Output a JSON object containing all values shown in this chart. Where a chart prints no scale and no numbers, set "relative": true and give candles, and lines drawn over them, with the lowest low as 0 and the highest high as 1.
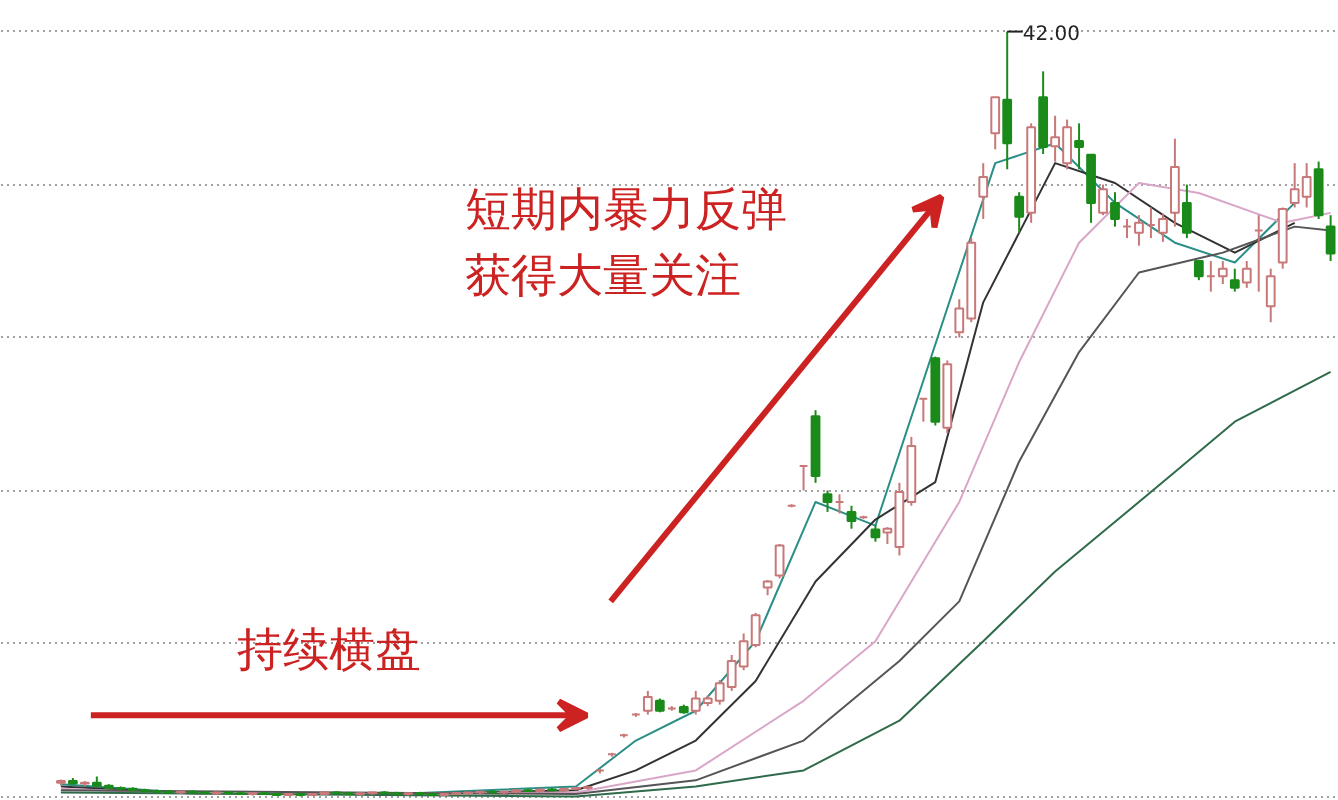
{
  "chart_data": {
    "type": "candlestick",
    "relative": true,
    "grid": "y",
    "categories": [
      null,
      null,
      null,
      null,
      null,
      null,
      null,
      null,
      null,
      null,
      null,
      null,
      null,
      null,
      null,
      null,
      null,
      null,
      null,
      null,
      null,
      null,
      null,
      null,
      null,
      null,
      null,
      null,
      null,
      null,
      null,
      null,
      null,
      null,
      null,
      null,
      null,
      null,
      null,
      null,
      null,
      null,
      null,
      null,
      null,
      null,
      null,
      null,
      null,
      null,
      null,
      null,
      null,
      null,
      null,
      null,
      null,
      null,
      null,
      null,
      null,
      null,
      null,
      null,
      null,
      null,
      null,
      null,
      null,
      null,
      null,
      null,
      null,
      null,
      null,
      null,
      null,
      null,
      null,
      null,
      null,
      null,
      null,
      null,
      null,
      null,
      null,
      null,
      null,
      null,
      null,
      null,
      null,
      null,
      null,
      null,
      null,
      null,
      null,
      null,
      null,
      null,
      null,
      null,
      null,
      null,
      null
    ],
    "colors": [
      "#c87878",
      "#1a8a1a",
      "#c87878",
      "#1a8a1a",
      "#1a8a1a",
      "#1a8a1a",
      "#1a8a1a",
      "#1a8a1a",
      "#1a8a1a",
      "#1a8a1a",
      "#c87878",
      "#1a8a1a",
      "#1a8a1a",
      "#c87878",
      "#1a8a1a",
      "#1a8a1a",
      "#c87878",
      "#1a8a1a",
      "#1a8a1a",
      "#c87878",
      "#1a8a1a",
      "#c87878",
      "#c87878",
      "#1a8a1a",
      "#1a8a1a",
      "#c87878",
      "#c87878",
      "#1a8a1a",
      "#1a8a1a",
      "#c87878",
      "#1a8a1a",
      "#1a8a1a",
      "#c87878",
      "#c87878",
      "#c87878",
      "#c87878",
      "#1a8a1a",
      "#c87878",
      "#c87878",
      "#1a8a1a",
      "#c87878",
      "#1a8a1a",
      "#c87878",
      "#c87878",
      "#c87878",
      "#c87878",
      "#c87878",
      "#c87878",
      "#c87878",
      "#c87878",
      "#1a8a1a",
      "#c87878",
      "#1a8a1a",
      "#c87878",
      "#c87878",
      "#c87878",
      "#c87878",
      "#c87878",
      "#c87878",
      "#c87878",
      "#c87878",
      "#c87878",
      "#c87878",
      "#1a8a1a",
      "#1a8a1a",
      "#c87878",
      "#1a8a1a",
      "#c87878",
      "#1a8a1a",
      "#c87878",
      "#c87878",
      "#c87878",
      "#c87878",
      "#1a8a1a",
      "#c87878",
      "#c87878",
      "#c87878",
      "#c87878",
      "#c87878",
      "#1a8a1a",
      "#1a8a1a",
      "#c87878",
      "#1a8a1a",
      "#c87878",
      "#c87878",
      "#1a8a1a",
      "#1a8a1a",
      "#c87878",
      "#1a8a1a",
      "#c87878",
      "#c87878",
      "#c87878",
      "#c87878",
      "#c87878",
      "#1a8a1a",
      "#1a8a1a",
      "#c87878",
      "#c87878",
      "#1a8a1a",
      "#c87878",
      "#c87878",
      "#c87878",
      "#c87878",
      "#c87878",
      "#c87878",
      "#1a8a1a",
      "#1a8a1a"
    ],
    "ohlc": [
      [
        0.018,
        0.022,
        0.014,
        0.02
      ],
      [
        0.02,
        0.024,
        0.016,
        0.017
      ],
      [
        0.017,
        0.02,
        0.013,
        0.018
      ],
      [
        0.018,
        0.026,
        0.012,
        0.014
      ],
      [
        0.014,
        0.016,
        0.01,
        0.011
      ],
      [
        0.011,
        0.013,
        0.008,
        0.01
      ],
      [
        0.01,
        0.012,
        0.007,
        0.008
      ],
      [
        0.008,
        0.01,
        0.005,
        0.007
      ],
      [
        0.007,
        0.009,
        0.004,
        0.006
      ],
      [
        0.006,
        0.008,
        0.003,
        0.005
      ],
      [
        0.005,
        0.007,
        0.003,
        0.006
      ],
      [
        0.006,
        0.008,
        0.004,
        0.005
      ],
      [
        0.005,
        0.007,
        0.003,
        0.004
      ],
      [
        0.004,
        0.006,
        0.002,
        0.005
      ],
      [
        0.005,
        0.007,
        0.003,
        0.004
      ],
      [
        0.004,
        0.006,
        0.002,
        0.003
      ],
      [
        0.003,
        0.005,
        0.001,
        0.004
      ],
      [
        0.004,
        0.006,
        0.002,
        0.003
      ],
      [
        0.003,
        0.005,
        0.001,
        0.002
      ],
      [
        0.002,
        0.004,
        0.001,
        0.003
      ],
      [
        0.003,
        0.004,
        0,
        0.002
      ],
      [
        0.002,
        0.004,
        0.001,
        0.003
      ],
      [
        0.003,
        0.006,
        0.002,
        0.005
      ],
      [
        0.005,
        0.007,
        0.003,
        0.004
      ],
      [
        0.004,
        0.006,
        0.002,
        0.003
      ],
      [
        0.003,
        0.005,
        0.001,
        0.004
      ],
      [
        0.004,
        0.006,
        0.002,
        0.005
      ],
      [
        0.005,
        0.007,
        0.003,
        0.004
      ],
      [
        0.004,
        0.006,
        0.002,
        0.003
      ],
      [
        0.003,
        0.005,
        0.001,
        0.004
      ],
      [
        0.004,
        0.006,
        0.002,
        0.003
      ],
      [
        0.003,
        0.005,
        0.001,
        0.002
      ],
      [
        0.002,
        0.004,
        0.001,
        0.003
      ],
      [
        0.003,
        0.005,
        0.002,
        0.004
      ],
      [
        0.004,
        0.006,
        0.002,
        0.005
      ],
      [
        0.005,
        0.007,
        0.003,
        0.006
      ],
      [
        0.006,
        0.008,
        0.004,
        0.005
      ],
      [
        0.005,
        0.007,
        0.003,
        0.006
      ],
      [
        0.006,
        0.009,
        0.004,
        0.008
      ],
      [
        0.008,
        0.01,
        0.006,
        0.007
      ],
      [
        0.007,
        0.01,
        0.005,
        0.009
      ],
      [
        0.009,
        0.011,
        0.007,
        0.008
      ],
      [
        0.008,
        0.011,
        0.006,
        0.01
      ],
      [
        0.01,
        0.012,
        0.008,
        0.011
      ],
      [
        0.011,
        0.013,
        0.009,
        0.012
      ],
      [
        0.034,
        0.036,
        0.03,
        0.034
      ],
      [
        0.055,
        0.057,
        0.052,
        0.055
      ],
      [
        0.08,
        0.082,
        0.077,
        0.08
      ],
      [
        0.107,
        0.109,
        0.104,
        0.107
      ],
      [
        0.112,
        0.138,
        0.107,
        0.13
      ],
      [
        0.125,
        0.128,
        0.11,
        0.112
      ],
      [
        0.115,
        0.118,
        0.112,
        0.115
      ],
      [
        0.117,
        0.12,
        0.108,
        0.11
      ],
      [
        0.112,
        0.138,
        0.107,
        0.128
      ],
      [
        0.122,
        0.132,
        0.118,
        0.128
      ],
      [
        0.125,
        0.152,
        0.12,
        0.148
      ],
      [
        0.143,
        0.185,
        0.138,
        0.177
      ],
      [
        0.17,
        0.213,
        0.165,
        0.203
      ],
      [
        0.198,
        0.24,
        0.195,
        0.237
      ],
      [
        0.273,
        0.283,
        0.263,
        0.281
      ],
      [
        0.289,
        0.33,
        0.285,
        0.328
      ],
      [
        0.38,
        0.382,
        0.378,
        0.38
      ],
      [
        0.432,
        0.432,
        0.4,
        0.432
      ],
      [
        0.497,
        0.505,
        0.41,
        0.419
      ],
      [
        0.395,
        0.4,
        0.372,
        0.385
      ],
      [
        0.385,
        0.395,
        0.37,
        0.385
      ],
      [
        0.372,
        0.38,
        0.35,
        0.36
      ],
      [
        0.365,
        0.367,
        0.363,
        0.365
      ],
      [
        0.349,
        0.355,
        0.333,
        0.339
      ],
      [
        0.345,
        0.352,
        0.33,
        0.35
      ],
      [
        0.326,
        0.41,
        0.315,
        0.398
      ],
      [
        0.385,
        0.47,
        0.38,
        0.458
      ],
      [
        0.52,
        0.52,
        0.49,
        0.52
      ],
      [
        0.573,
        0.575,
        0.485,
        0.49
      ],
      [
        0.482,
        0.57,
        0.475,
        0.565
      ],
      [
        0.607,
        0.65,
        0.6,
        0.638
      ],
      [
        0.625,
        0.73,
        0.62,
        0.724
      ],
      [
        0.784,
        0.828,
        0.755,
        0.81
      ],
      [
        0.867,
        0.914,
        0.846,
        0.914
      ],
      [
        0.911,
        1,
        0.82,
        0.854
      ],
      [
        0.784,
        0.79,
        0.737,
        0.758
      ],
      [
        0.763,
        0.88,
        0.75,
        0.875
      ],
      [
        0.914,
        0.948,
        0.84,
        0.849
      ],
      [
        0.85,
        0.89,
        0.83,
        0.862
      ],
      [
        0.828,
        0.885,
        0.82,
        0.875
      ],
      [
        0.857,
        0.88,
        0.82,
        0.849
      ],
      [
        0.839,
        0.84,
        0.75,
        0.776
      ],
      [
        0.763,
        0.8,
        0.76,
        0.794
      ],
      [
        0.776,
        0.79,
        0.745,
        0.755
      ],
      [
        0.745,
        0.755,
        0.73,
        0.745
      ],
      [
        0.737,
        0.76,
        0.72,
        0.75
      ],
      [
        0.747,
        0.77,
        0.73,
        0.747
      ],
      [
        0.737,
        0.762,
        0.725,
        0.755
      ],
      [
        0.763,
        0.86,
        0.745,
        0.823
      ],
      [
        0.776,
        0.8,
        0.73,
        0.737
      ],
      [
        0.7,
        0.7,
        0.675,
        0.68
      ],
      [
        0.68,
        0.7,
        0.66,
        0.68
      ],
      [
        0.68,
        0.7,
        0.67,
        0.69
      ],
      [
        0.675,
        0.69,
        0.66,
        0.665
      ],
      [
        0.672,
        0.7,
        0.665,
        0.69
      ],
      [
        0.74,
        0.76,
        0.66,
        0.74
      ],
      [
        0.641,
        0.69,
        0.62,
        0.68
      ],
      [
        0.698,
        0.77,
        0.69,
        0.768
      ],
      [
        0.776,
        0.828,
        0.77,
        0.794
      ],
      [
        0.784,
        0.828,
        0.77,
        0.81
      ],
      [
        0.82,
        0.83,
        0.755,
        0.76
      ],
      [
        0.745,
        0.76,
        0.7,
        0.71
      ]
    ],
    "series": [
      {
        "type": "line",
        "color": "#2a8f86",
        "values": [
          0.016,
          null,
          null,
          null,
          null,
          null,
          null,
          null,
          null,
          null,
          null,
          null,
          0.003,
          null,
          null,
          null,
          null,
          null,
          null,
          null,
          null,
          null,
          null,
          null,
          null,
          null,
          null,
          null,
          0.003,
          null,
          null,
          null,
          null,
          null,
          null,
          null,
          null,
          null,
          null,
          null,
          null,
          null,
          null,
          0.013,
          null,
          null,
          null,
          null,
          0.073,
          null,
          null,
          null,
          null,
          0.112,
          null,
          null,
          null,
          null,
          0.203,
          null,
          null,
          null,
          null,
          0.385,
          null,
          null,
          null,
          null,
          0.354,
          null,
          null,
          null,
          null,
          null,
          null,
          null,
          null,
          null,
          0.828,
          null,
          null,
          null,
          null,
          0.854,
          null,
          null,
          null,
          null,
          0.776,
          null,
          null,
          null,
          null,
          0.724,
          null,
          null,
          null,
          null,
          0.698,
          null,
          null,
          null,
          null,
          0.776,
          null,
          null,
          null
        ]
      },
      {
        "type": "line",
        "color": "#333333",
        "values": [
          0.013,
          null,
          null,
          null,
          null,
          null,
          null,
          null,
          null,
          null,
          null,
          null,
          0.003,
          null,
          null,
          null,
          null,
          null,
          null,
          null,
          null,
          null,
          null,
          null,
          null,
          null,
          null,
          null,
          0.003,
          null,
          null,
          null,
          null,
          null,
          null,
          null,
          null,
          null,
          null,
          null,
          null,
          null,
          null,
          0.008,
          null,
          null,
          null,
          null,
          0.034,
          null,
          null,
          null,
          null,
          0.073,
          null,
          null,
          null,
          null,
          0.151,
          null,
          null,
          null,
          null,
          0.281,
          null,
          null,
          null,
          null,
          0.362,
          null,
          null,
          null,
          null,
          0.411,
          null,
          null,
          null,
          0.646,
          null,
          null,
          null,
          null,
          null,
          0.828,
          null,
          null,
          null,
          null,
          0.802,
          null,
          null,
          null,
          null,
          0.75,
          null,
          null,
          null,
          null,
          0.711,
          null,
          null,
          null,
          null,
          0.75,
          null,
          null,
          null
        ]
      },
      {
        "type": "line",
        "color": "#d9a6c8",
        "values": [
          0.01,
          null,
          null,
          null,
          null,
          null,
          null,
          null,
          null,
          null,
          null,
          null,
          0.003,
          null,
          null,
          null,
          null,
          null,
          null,
          null,
          null,
          null,
          null,
          null,
          null,
          null,
          null,
          null,
          null,
          null,
          null,
          null,
          null,
          null,
          null,
          null,
          null,
          null,
          null,
          null,
          null,
          null,
          null,
          0.005,
          null,
          null,
          null,
          null,
          null,
          null,
          null,
          null,
          null,
          0.034,
          null,
          null,
          null,
          null,
          null,
          null,
          null,
          null,
          0.125,
          null,
          null,
          null,
          null,
          null,
          0.203,
          null,
          null,
          null,
          null,
          null,
          null,
          0.385,
          null,
          null,
          null,
          null,
          0.568,
          null,
          null,
          null,
          null,
          0.724,
          null,
          null,
          null,
          null,
          0.802,
          null,
          null,
          null,
          null,
          0.789,
          null,
          null,
          null,
          null,
          null,
          null,
          0.75,
          null,
          null,
          null,
          0.763
        ]
      },
      {
        "type": "line",
        "color": "#555555",
        "values": [
          0.008,
          null,
          null,
          null,
          null,
          null,
          null,
          null,
          null,
          null,
          null,
          null,
          null,
          null,
          null,
          null,
          null,
          null,
          null,
          null,
          null,
          null,
          null,
          null,
          null,
          null,
          null,
          null,
          null,
          null,
          null,
          null,
          null,
          null,
          null,
          null,
          null,
          null,
          null,
          null,
          null,
          null,
          null,
          0.003,
          null,
          null,
          null,
          null,
          null,
          null,
          null,
          null,
          null,
          0.021,
          null,
          null,
          null,
          null,
          null,
          null,
          null,
          null,
          0.073,
          null,
          null,
          null,
          null,
          null,
          null,
          null,
          0.177,
          null,
          null,
          null,
          null,
          0.255,
          null,
          null,
          null,
          null,
          0.438,
          null,
          null,
          null,
          null,
          0.581,
          null,
          null,
          null,
          null,
          0.685,
          null,
          null,
          null,
          null,
          null,
          null,
          0.711,
          null,
          null,
          null,
          null,
          null,
          0.745,
          null,
          null,
          0.74
        ]
      },
      {
        "type": "line",
        "color": "#2f6b4a",
        "values": [
          0.005,
          null,
          null,
          null,
          null,
          null,
          null,
          null,
          null,
          null,
          null,
          null,
          null,
          null,
          null,
          null,
          null,
          null,
          null,
          null,
          null,
          null,
          null,
          null,
          null,
          null,
          null,
          null,
          null,
          null,
          null,
          null,
          null,
          null,
          null,
          null,
          null,
          null,
          null,
          null,
          null,
          null,
          null,
          0,
          null,
          null,
          null,
          null,
          null,
          null,
          null,
          null,
          null,
          0.013,
          null,
          null,
          null,
          null,
          null,
          null,
          null,
          null,
          0.034,
          null,
          null,
          null,
          null,
          null,
          null,
          null,
          0.099,
          null,
          null,
          null,
          null,
          null,
          null,
          0.203,
          null,
          null,
          null,
          null,
          null,
          0.294,
          null,
          null,
          null,
          null,
          null,
          null,
          null,
          null,
          0.411,
          null,
          null,
          null,
          null,
          null,
          0.49,
          null,
          null,
          null,
          null,
          null,
          null,
          null,
          0.555
        ]
      }
    ],
    "annotations": [
      "短期内暴力反弹",
      "获得大量关注",
      "持续横盘",
      "42.00"
    ]
  }
}
